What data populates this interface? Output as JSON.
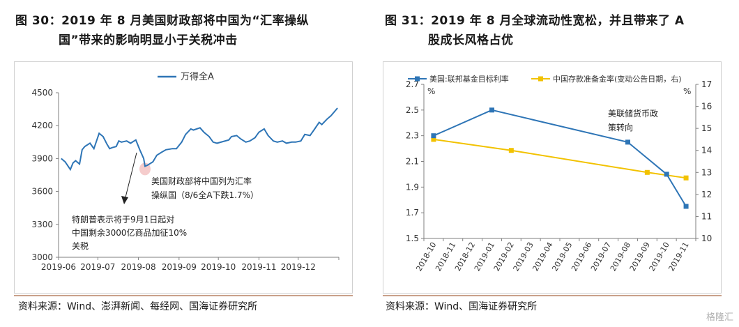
{
  "fig30": {
    "title_line1": "图 30：2019 年 8 月美国财政部将中国为“汇率操纵",
    "title_line2": "国”带来的影响明显小于关税冲击",
    "source": "资料来源：Wind、澎湃新闻、每经网、国海证券研究所",
    "annotation_a_line1": "美国财政部将中国列为汇率",
    "annotation_a_line2": "操纵国（8/6全A下跌1.7%）",
    "annotation_b_line1": "特朗普表示将于9月1日起对",
    "annotation_b_line2": "中国剩余3000亿商品加征10%",
    "annotation_b_line3": "关税"
  },
  "fig31": {
    "title_line1": "图 31：2019 年 8 月全球流动性宽松，并且带来了 A",
    "title_line2": "股成长风格占优",
    "source": "资料来源：Wind、国海证券研究所",
    "annotation_line1": "美联储货币政",
    "annotation_line2": "策转向",
    "left_unit": "%",
    "right_unit": "%"
  },
  "watermark": "格隆汇",
  "colors": {
    "blue": "#2e75b6",
    "yellow": "#f2c200",
    "highlight": "#f4c6c6"
  },
  "chart_data": [
    {
      "type": "line",
      "title": "",
      "xlabel": "",
      "ylabel": "",
      "x_ticks": [
        "2019-06",
        "2019-07",
        "2019-08",
        "2019-09",
        "2019-10",
        "2019-11",
        "2019-12"
      ],
      "ylim": [
        3000,
        4500
      ],
      "y_ticks": [
        3000,
        3300,
        3600,
        3900,
        4200,
        4500
      ],
      "legend": "top",
      "grid": false,
      "series": [
        {
          "name": "万得全A",
          "x": [
            "2019-06-03",
            "2019-06-06",
            "2019-06-10",
            "2019-06-12",
            "2019-06-14",
            "2019-06-17",
            "2019-06-19",
            "2019-06-21",
            "2019-06-25",
            "2019-06-28",
            "2019-07-02",
            "2019-07-05",
            "2019-07-08",
            "2019-07-10",
            "2019-07-12",
            "2019-07-15",
            "2019-07-17",
            "2019-07-19",
            "2019-07-23",
            "2019-07-26",
            "2019-07-30",
            "2019-08-02",
            "2019-08-05",
            "2019-08-06",
            "2019-08-08",
            "2019-08-12",
            "2019-08-15",
            "2019-08-19",
            "2019-08-22",
            "2019-08-27",
            "2019-08-30",
            "2019-09-03",
            "2019-09-06",
            "2019-09-10",
            "2019-09-12",
            "2019-09-17",
            "2019-09-20",
            "2019-09-24",
            "2019-09-27",
            "2019-09-30",
            "2019-10-09",
            "2019-10-11",
            "2019-10-15",
            "2019-10-18",
            "2019-10-22",
            "2019-10-25",
            "2019-10-29",
            "2019-11-01",
            "2019-11-05",
            "2019-11-08",
            "2019-11-12",
            "2019-11-15",
            "2019-11-19",
            "2019-11-22",
            "2019-11-26",
            "2019-11-29",
            "2019-12-03",
            "2019-12-06",
            "2019-12-10",
            "2019-12-13",
            "2019-12-17",
            "2019-12-19",
            "2019-12-23",
            "2019-12-26",
            "2019-12-31"
          ],
          "values": [
            3900,
            3870,
            3800,
            3860,
            3880,
            3850,
            3980,
            4010,
            4040,
            3990,
            4130,
            4100,
            4030,
            3990,
            4000,
            4010,
            4060,
            4050,
            4060,
            4040,
            4070,
            3980,
            3900,
            3830,
            3840,
            3870,
            3930,
            3960,
            3980,
            3990,
            3990,
            4050,
            4120,
            4170,
            4160,
            4180,
            4140,
            4100,
            4050,
            4040,
            4070,
            4100,
            4110,
            4080,
            4050,
            4060,
            4090,
            4140,
            4170,
            4110,
            4060,
            4050,
            4060,
            4040,
            4050,
            4050,
            4060,
            4120,
            4110,
            4160,
            4230,
            4210,
            4260,
            4290,
            4360
          ]
        }
      ]
    },
    {
      "type": "line",
      "title": "",
      "x_ticks": [
        "2018-10",
        "2018-11",
        "2018-12",
        "2019-01",
        "2019-02",
        "2019-03",
        "2019-04",
        "2019-05",
        "2019-06",
        "2019-07",
        "2019-08",
        "2019-09",
        "2019-10",
        "2019-11"
      ],
      "ylim": [
        1.5,
        2.7
      ],
      "y_ticks": [
        1.5,
        1.7,
        1.9,
        2.1,
        2.3,
        2.5,
        2.7
      ],
      "y2lim": [
        10,
        17
      ],
      "y2_ticks": [
        10,
        11,
        12,
        13,
        14,
        15,
        16,
        17
      ],
      "legend": "top",
      "grid": false,
      "series": [
        {
          "name": "美国:联邦基金目标利率",
          "axis": "left",
          "x": [
            "2018-10",
            "2019-01",
            "2019-08",
            "2019-10",
            "2019-11"
          ],
          "values": [
            2.3,
            2.5,
            2.25,
            2.0,
            1.75
          ]
        },
        {
          "name": "中国存款准备金率(变动公告日期，右)",
          "axis": "right",
          "x": [
            "2018-10",
            "2019-02",
            "2019-09",
            "2019-11"
          ],
          "values": [
            14.5,
            14.0,
            13.0,
            12.75
          ]
        }
      ]
    }
  ]
}
